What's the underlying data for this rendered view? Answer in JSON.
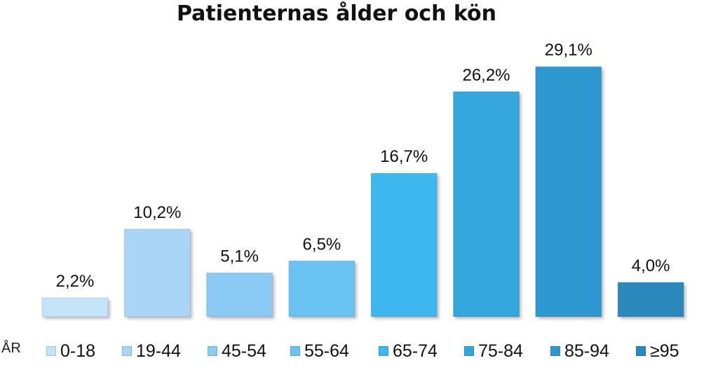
{
  "chart_data": {
    "type": "bar",
    "title": "Patienternas ålder och kön",
    "unit_label": "ÅR",
    "categories": [
      "0-18",
      "19-44",
      "45-54",
      "55-64",
      "65-74",
      "75-84",
      "85-94",
      "≥95"
    ],
    "values": [
      2.2,
      10.2,
      5.1,
      6.5,
      16.7,
      26.2,
      29.1,
      4.0
    ],
    "value_labels": [
      "2,2%",
      "10,2%",
      "5,1%",
      "6,5%",
      "16,7%",
      "26,2%",
      "29,1%",
      "4,0%"
    ],
    "colors": [
      "#c5e3f8",
      "#a9d6f7",
      "#8bcaf5",
      "#6bc2f3",
      "#3db7ee",
      "#33a6dd",
      "#2f98d1",
      "#2b88bd"
    ],
    "ylim": [
      0,
      30
    ],
    "grid": false,
    "legend_position": "bottom"
  }
}
